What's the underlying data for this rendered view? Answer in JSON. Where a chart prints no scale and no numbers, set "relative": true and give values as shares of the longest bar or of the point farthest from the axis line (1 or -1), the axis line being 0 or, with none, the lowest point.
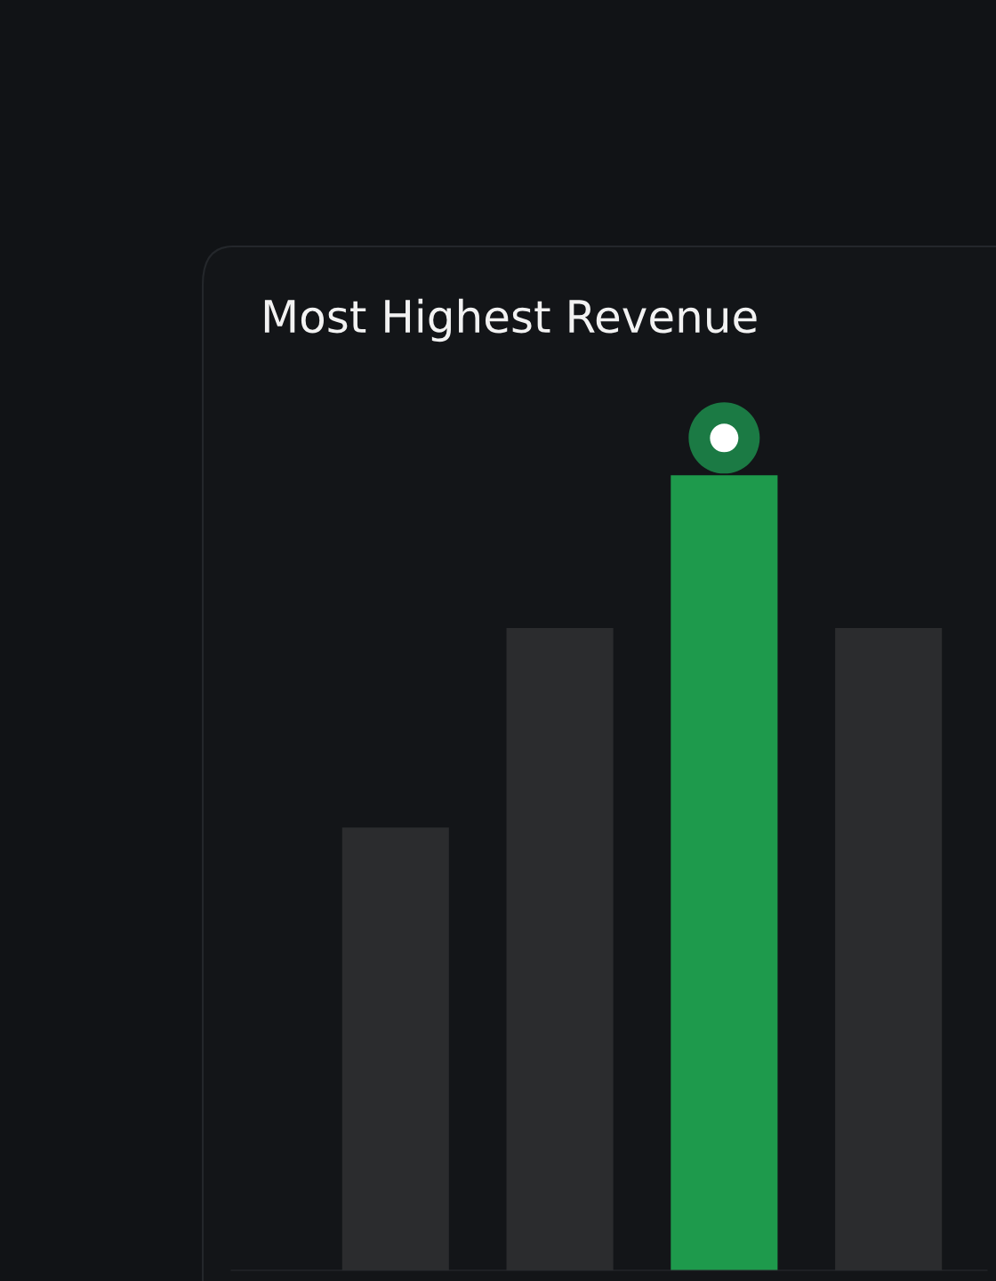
{
  "chart_data": {
    "type": "bar",
    "title": "Most Highest Revenue",
    "relative": true,
    "categories": [
      null,
      null,
      null,
      null
    ],
    "values": [
      0.557,
      0.808,
      1,
      0.808
    ],
    "colors": [
      "#2b2c2e",
      "#2b2c2e",
      "#1e9a4c",
      "#2b2c2e"
    ]
  }
}
